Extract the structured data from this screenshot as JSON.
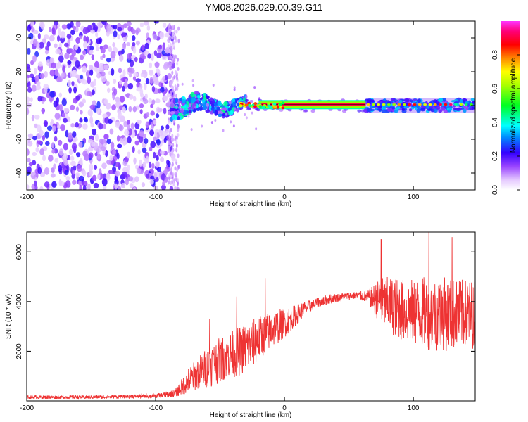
{
  "title": "YM08.2026.029.00.39.G11",
  "chart_data": [
    {
      "type": "heatmap",
      "name": "spectrogram",
      "xlabel": "Height of straight line (km)",
      "ylabel": "Frequency (Hz)",
      "xlim": [
        -200,
        148
      ],
      "ylim": [
        -50,
        50
      ],
      "xticks": [
        -200,
        -100,
        0,
        100
      ],
      "yticks": [
        -40,
        -20,
        0,
        20,
        40
      ],
      "colorbar": {
        "label": "Normalized spectral amplitude",
        "range": [
          0,
          1
        ],
        "ticks": [
          0.0,
          0.2,
          0.4,
          0.6,
          0.8
        ],
        "tick_labels": [
          "0.0",
          "0.2",
          "0.4",
          "0.6",
          "0.8"
        ]
      },
      "regions": [
        {
          "name": "noise",
          "x": [
            -200,
            -86
          ],
          "freq": [
            -50,
            50
          ],
          "amplitude": [
            0.05,
            0.25
          ]
        },
        {
          "name": "transition",
          "x": [
            -88,
            -30
          ],
          "freq": [
            -10,
            8
          ],
          "amplitude": [
            0.1,
            0.45
          ]
        },
        {
          "name": "clean-tone",
          "x": [
            -20,
            63
          ],
          "freq": [
            0,
            1
          ],
          "amplitude": [
            0.8,
            0.95
          ]
        },
        {
          "name": "dotted-tone",
          "x": [
            63,
            148
          ],
          "freq": [
            -3,
            3
          ],
          "amplitude": [
            0.1,
            0.95
          ]
        }
      ]
    },
    {
      "type": "line",
      "name": "snr",
      "xlabel": "Height of straight line (km)",
      "ylabel": "SNR (10 * v/v)",
      "xlim": [
        -200,
        148
      ],
      "ylim": [
        0,
        6800
      ],
      "xticks": [
        -200,
        -100,
        0,
        100
      ],
      "yticks": [
        2000,
        4000,
        6000
      ],
      "color": "#ee3333",
      "envelope": {
        "x": [
          -200,
          -150,
          -100,
          -85,
          -75,
          -65,
          -55,
          -45,
          -35,
          -25,
          -15,
          -5,
          5,
          15,
          25,
          35,
          45,
          55,
          65,
          75,
          85,
          95,
          105,
          115,
          125,
          135,
          148
        ],
        "center": [
          150,
          150,
          200,
          300,
          800,
          1200,
          1500,
          1800,
          2000,
          2300,
          2700,
          3000,
          3300,
          3700,
          3950,
          4100,
          4200,
          4250,
          4200,
          4000,
          3800,
          3600,
          3600,
          3500,
          3500,
          3500,
          3500
        ],
        "spread": [
          70,
          70,
          80,
          150,
          500,
          700,
          900,
          900,
          1000,
          1000,
          800,
          700,
          500,
          300,
          200,
          200,
          150,
          150,
          250,
          1000,
          1200,
          1300,
          1400,
          1500,
          1500,
          1400,
          1400
        ],
        "peaks": [
          [
            -15,
            4950
          ],
          [
            -37,
            4200
          ],
          [
            -58,
            3300
          ],
          [
            75,
            6500
          ],
          [
            112,
            6800
          ],
          [
            130,
            6600
          ]
        ]
      }
    }
  ]
}
